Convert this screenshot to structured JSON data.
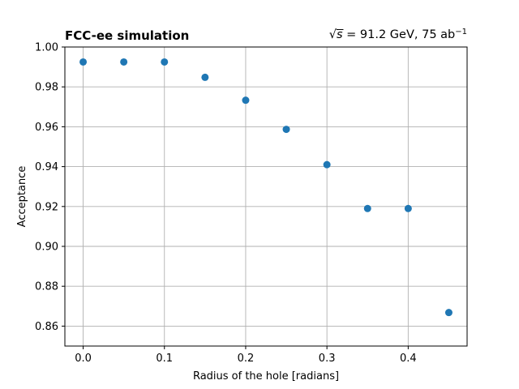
{
  "chart_data": {
    "type": "scatter",
    "title_left": "FCC-ee simulation",
    "title_right": {
      "sqrt": "√",
      "var": "s",
      "rest": " = 91.2 GeV, 75 ab",
      "exponent": "−1"
    },
    "xlabel": "Radius of the hole [radians]",
    "ylabel": "Acceptance",
    "xlim": [
      -0.0225,
      0.4725
    ],
    "ylim": [
      0.85,
      1.0
    ],
    "x_ticks": [
      0.0,
      0.1,
      0.2,
      0.3,
      0.4
    ],
    "y_ticks": [
      0.86,
      0.88,
      0.9,
      0.92,
      0.94,
      0.96,
      0.98,
      1.0
    ],
    "x_tick_labels": [
      "0.0",
      "0.1",
      "0.2",
      "0.3",
      "0.4"
    ],
    "y_tick_labels": [
      "0.86",
      "0.88",
      "0.90",
      "0.92",
      "0.94",
      "0.96",
      "0.98",
      "1.00"
    ],
    "grid": true,
    "marker_color": "#1f77b4",
    "points": [
      {
        "x": 0.0,
        "y": 0.9925
      },
      {
        "x": 0.05,
        "y": 0.9925
      },
      {
        "x": 0.1,
        "y": 0.9925
      },
      {
        "x": 0.15,
        "y": 0.9848
      },
      {
        "x": 0.2,
        "y": 0.9733
      },
      {
        "x": 0.25,
        "y": 0.9587
      },
      {
        "x": 0.3,
        "y": 0.941
      },
      {
        "x": 0.35,
        "y": 0.919
      },
      {
        "x": 0.4,
        "y": 0.919
      },
      {
        "x": 0.45,
        "y": 0.8668
      }
    ]
  }
}
